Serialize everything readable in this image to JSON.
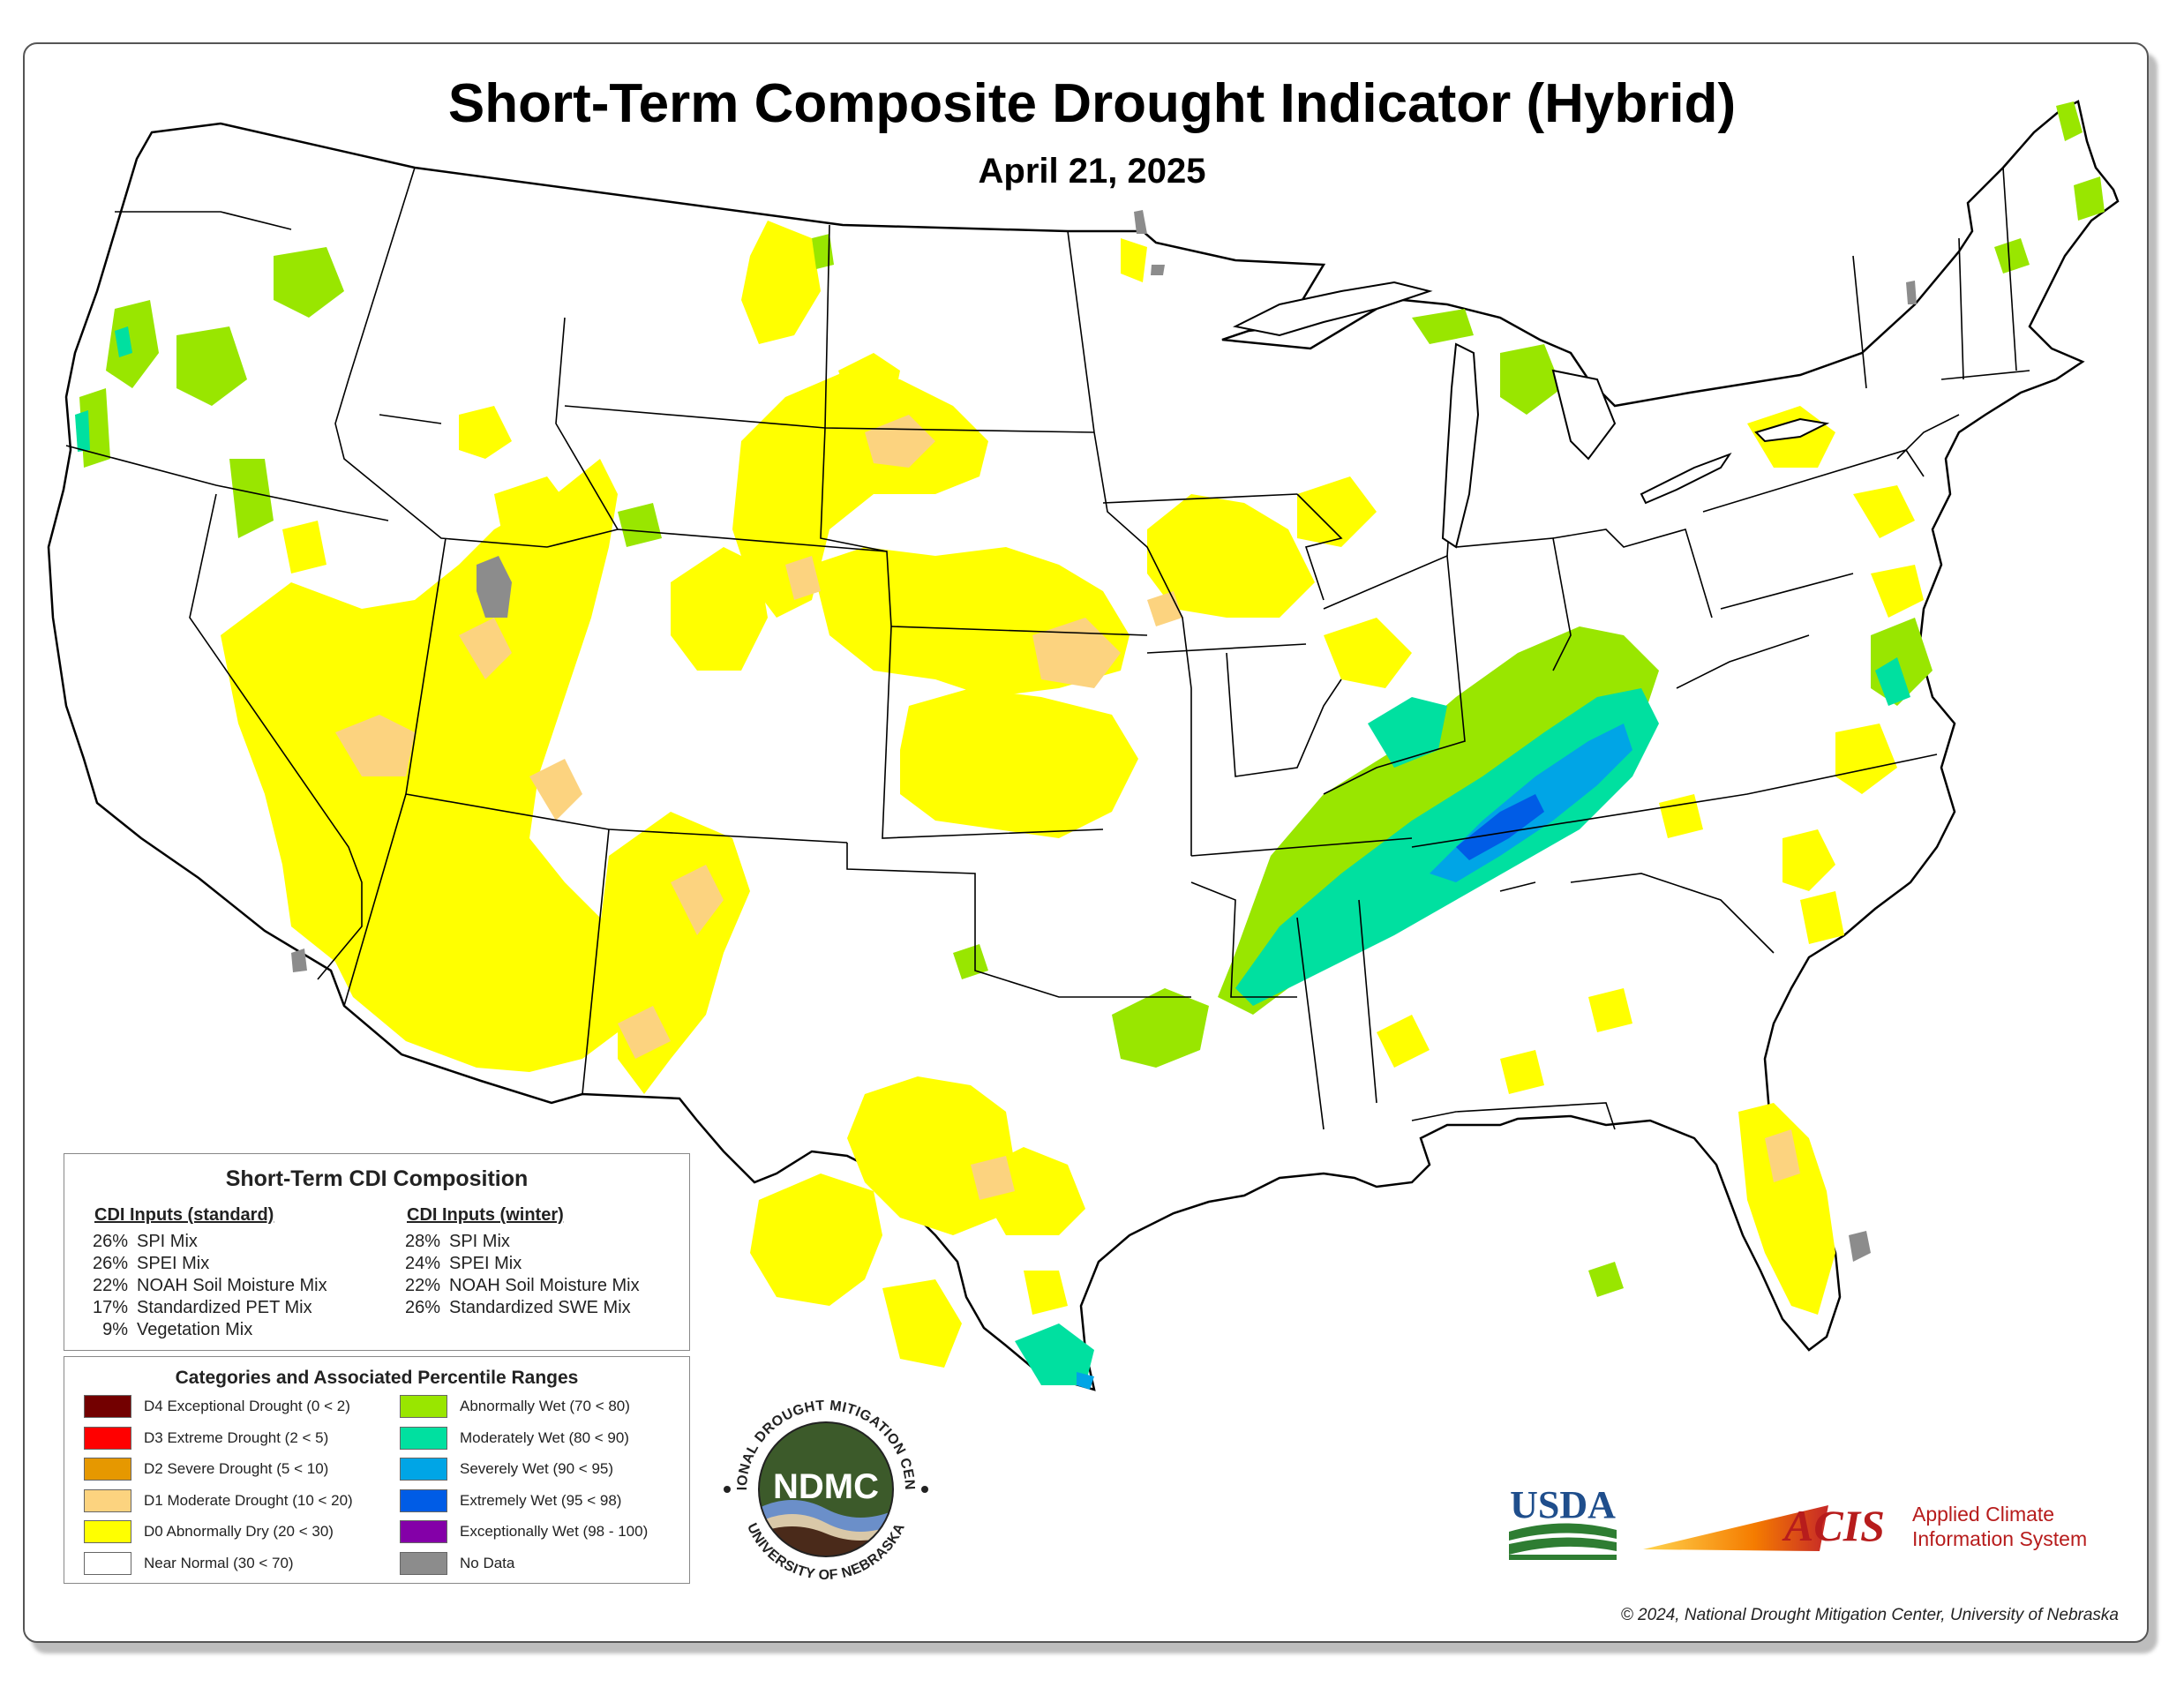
{
  "title": "Short-Term Composite Drought Indicator (Hybrid)",
  "date": "April 21, 2025",
  "composition": {
    "title": "Short-Term CDI Composition",
    "standard": {
      "heading": "CDI Inputs (standard)",
      "items": [
        {
          "pct": "26%",
          "label": "SPI Mix"
        },
        {
          "pct": "26%",
          "label": "SPEI Mix"
        },
        {
          "pct": "22%",
          "label": "NOAH Soil Moisture Mix"
        },
        {
          "pct": "17%",
          "label": "Standardized PET Mix"
        },
        {
          "pct": "9%",
          "label": "Vegetation Mix"
        }
      ]
    },
    "winter": {
      "heading": "CDI Inputs (winter)",
      "items": [
        {
          "pct": "28%",
          "label": "SPI Mix"
        },
        {
          "pct": "24%",
          "label": "SPEI Mix"
        },
        {
          "pct": "22%",
          "label": "NOAH Soil Moisture Mix"
        },
        {
          "pct": "26%",
          "label": "Standardized SWE Mix"
        }
      ]
    }
  },
  "categories": {
    "title": "Categories and Associated Percentile Ranges",
    "left": [
      {
        "label": "D4 Exceptional Drought (0 < 2)",
        "color": "#730000"
      },
      {
        "label": "D3 Extreme Drought (2 < 5)",
        "color": "#ff0000"
      },
      {
        "label": "D2 Severe Drought (5 < 10)",
        "color": "#e69800"
      },
      {
        "label": "D1 Moderate Drought (10 < 20)",
        "color": "#fcd37f"
      },
      {
        "label": "D0 Abnormally Dry (20 < 30)",
        "color": "#ffff00"
      },
      {
        "label": "Near Normal (30 < 70)",
        "color": "#ffffff"
      }
    ],
    "right": [
      {
        "label": "Abnormally Wet (70 < 80)",
        "color": "#99e600"
      },
      {
        "label": "Moderately Wet (80 < 90)",
        "color": "#00e0a0"
      },
      {
        "label": "Severely Wet (90 < 95)",
        "color": "#00a5e6"
      },
      {
        "label": "Extremely Wet (95 < 98)",
        "color": "#005ce6"
      },
      {
        "label": "Exceptionally Wet (98 - 100)",
        "color": "#8400a8"
      },
      {
        "label": "No Data",
        "color": "#8c8c8c"
      }
    ]
  },
  "logos": {
    "ndmc_abbr": "NDMC",
    "ndmc_top": "NATIONAL DROUGHT MITIGATION CENTER",
    "ndmc_bottom": "UNIVERSITY OF NEBRASKA",
    "usda": "USDA",
    "acis": "ACIS",
    "acis_line1": "Applied Climate",
    "acis_line2": "Information System"
  },
  "copyright": "© 2024, National Drought Mitigation Center, University of Nebraska",
  "colors": {
    "d1": "#fcd37f",
    "d0": "#ffff00",
    "w0": "#99e600",
    "w1": "#00e0a0",
    "w2": "#00a5e6",
    "w3": "#005ce6",
    "nodata": "#8c8c8c"
  }
}
